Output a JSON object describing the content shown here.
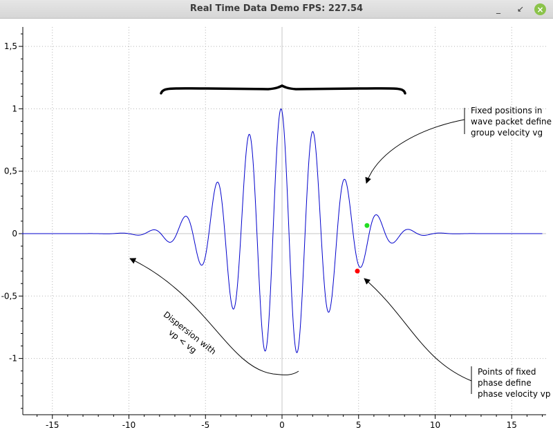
{
  "window": {
    "title": "Real Time Data Demo FPS: 227.54",
    "minimize_glyph": "_",
    "maximize_glyph": "↙",
    "close_glyph": "×"
  },
  "chart_data": {
    "type": "line",
    "title": "",
    "xlabel": "",
    "ylabel": "",
    "xlim": [
      -17,
      17
    ],
    "ylim": [
      -1.45,
      1.6
    ],
    "x_ticks": [
      -15,
      -10,
      -5,
      0,
      5,
      10,
      15
    ],
    "x_tick_labels": [
      "-15",
      "-10",
      "-5",
      "0",
      "5",
      "10",
      "15"
    ],
    "y_ticks": [
      -1,
      -0.5,
      0,
      0.5,
      1,
      1.5
    ],
    "y_tick_labels": [
      "-1",
      "-0,5",
      "0",
      "0,5",
      "1",
      "1,5"
    ],
    "grid": true,
    "series": [
      {
        "color": "#0000cc",
        "function": "exp(-(x/4.5)^2) * cos(3*x + 0.2)",
        "x_range": [
          -17,
          17
        ],
        "samples": 1200
      }
    ],
    "points": [
      {
        "x": 4.92,
        "y": -0.3,
        "color": "#ff0000"
      },
      {
        "x": 5.55,
        "y": 0.065,
        "color": "#22dd22"
      }
    ],
    "annotations": [
      {
        "id": "group",
        "lines": [
          "Fixed positions in",
          "wave packet define",
          "group velocity vg"
        ]
      },
      {
        "id": "phase",
        "lines": [
          "Points of fixed",
          "phase define",
          "phase velocity vp"
        ]
      },
      {
        "id": "dispersion",
        "lines": [
          "Dispersion with",
          "vp < vg"
        ]
      }
    ]
  }
}
